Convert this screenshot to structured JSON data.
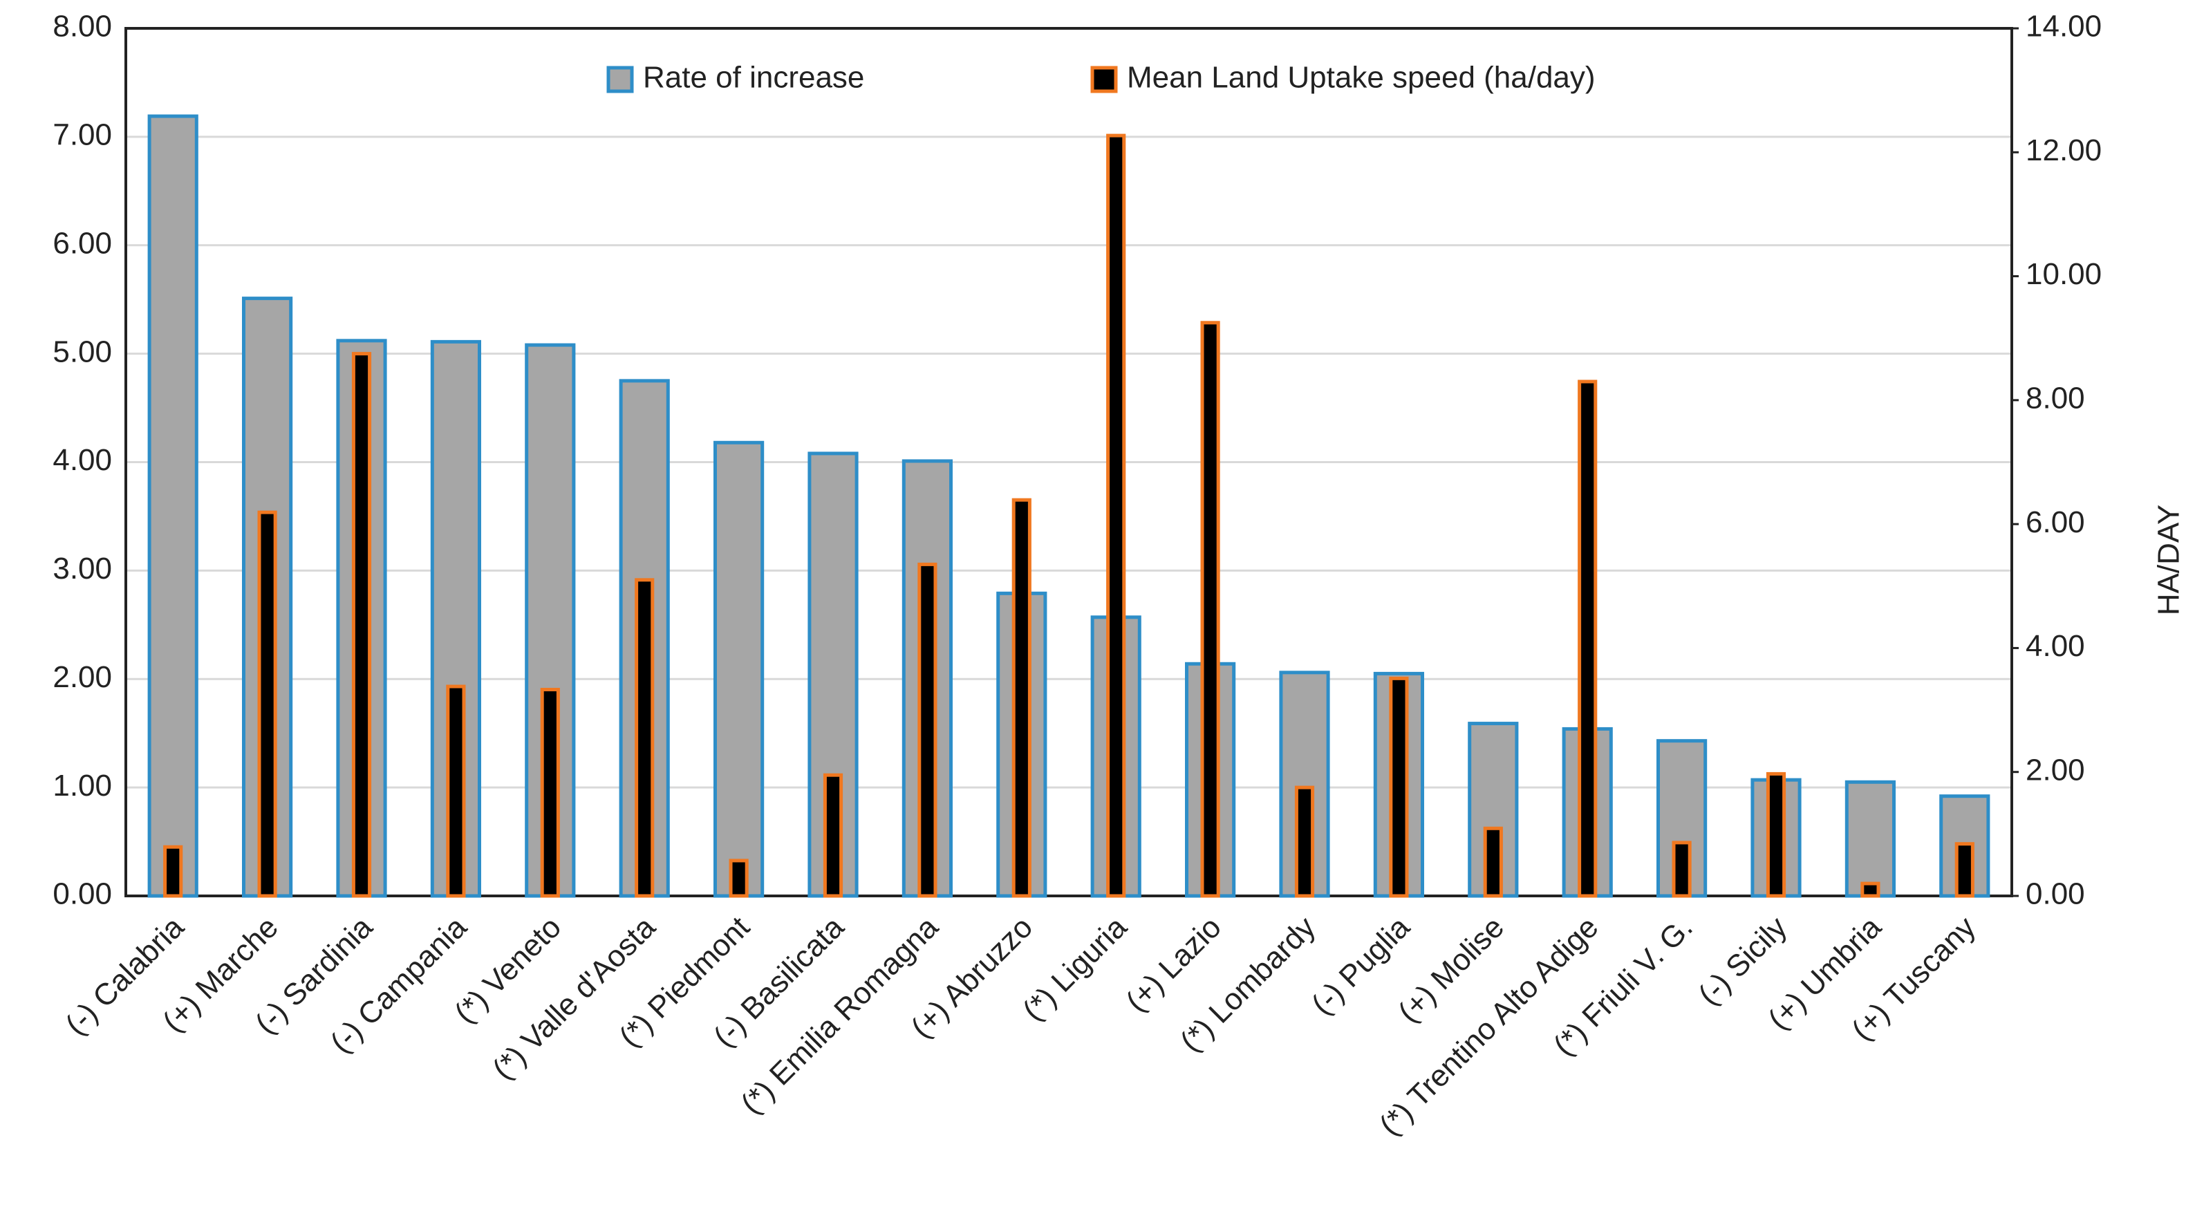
{
  "chart_data": {
    "type": "bar",
    "categories": [
      "(-) Calabria",
      "(+) Marche",
      "(-) Sardinia",
      "(-) Campania",
      "(*) Veneto",
      "(*) Valle d'Aosta",
      "(*) Piedmont",
      "(-) Basilicata",
      "(*) Emilia Romagna",
      "(+) Abruzzo",
      "(*) Liguria",
      "(+) Lazio",
      "(*) Lombardy",
      "(-) Puglia",
      "(+) Molise",
      "(*) Trentino Alto Adige",
      "(*) Friuli V. G.",
      "(-) Sicily",
      "(+) Umbria",
      "(+) Tuscany"
    ],
    "series": [
      {
        "name": "Rate of increase",
        "color": "#a6a6a6",
        "edge_color": "#2e8ec8",
        "values": [
          7.19,
          5.51,
          5.12,
          5.11,
          5.08,
          4.75,
          4.18,
          4.08,
          4.01,
          2.79,
          2.57,
          2.14,
          2.06,
          2.05,
          1.59,
          1.54,
          1.43,
          1.07,
          1.05,
          0.92
        ]
      },
      {
        "name": "Mean Land Uptake speed (ha/day)",
        "color": "#000000",
        "edge_color": "#f07820",
        "axis": "y2",
        "values": [
          0.79,
          6.19,
          8.75,
          3.38,
          3.33,
          5.1,
          0.57,
          1.95,
          5.35,
          6.39,
          12.27,
          9.25,
          1.75,
          3.51,
          1.09,
          8.3,
          0.86,
          1.97,
          0.2,
          0.84
        ]
      }
    ],
    "ylim": [
      0,
      8
    ],
    "yticks": [
      {
        "value": 0,
        "label": "0.00"
      },
      {
        "value": 1,
        "label": "1.00"
      },
      {
        "value": 2,
        "label": "2.00"
      },
      {
        "value": 3,
        "label": "3.00"
      },
      {
        "value": 4,
        "label": "4.00"
      },
      {
        "value": 5,
        "label": "5.00"
      },
      {
        "value": 6,
        "label": "6.00"
      },
      {
        "value": 7,
        "label": "7.00"
      },
      {
        "value": 8,
        "label": "8.00"
      }
    ],
    "y2lim": [
      0,
      14
    ],
    "y2ticks": [
      {
        "value": 0,
        "label": "0.00"
      },
      {
        "value": 2,
        "label": "2.00"
      },
      {
        "value": 4,
        "label": "4.00"
      },
      {
        "value": 6,
        "label": "6.00"
      },
      {
        "value": 8,
        "label": "8.00"
      },
      {
        "value": 10,
        "label": "10.00"
      },
      {
        "value": 12,
        "label": "12.00"
      },
      {
        "value": 14,
        "label": "14.00"
      }
    ],
    "y2label": "HA/DAY",
    "grid": true,
    "legend": "top"
  }
}
